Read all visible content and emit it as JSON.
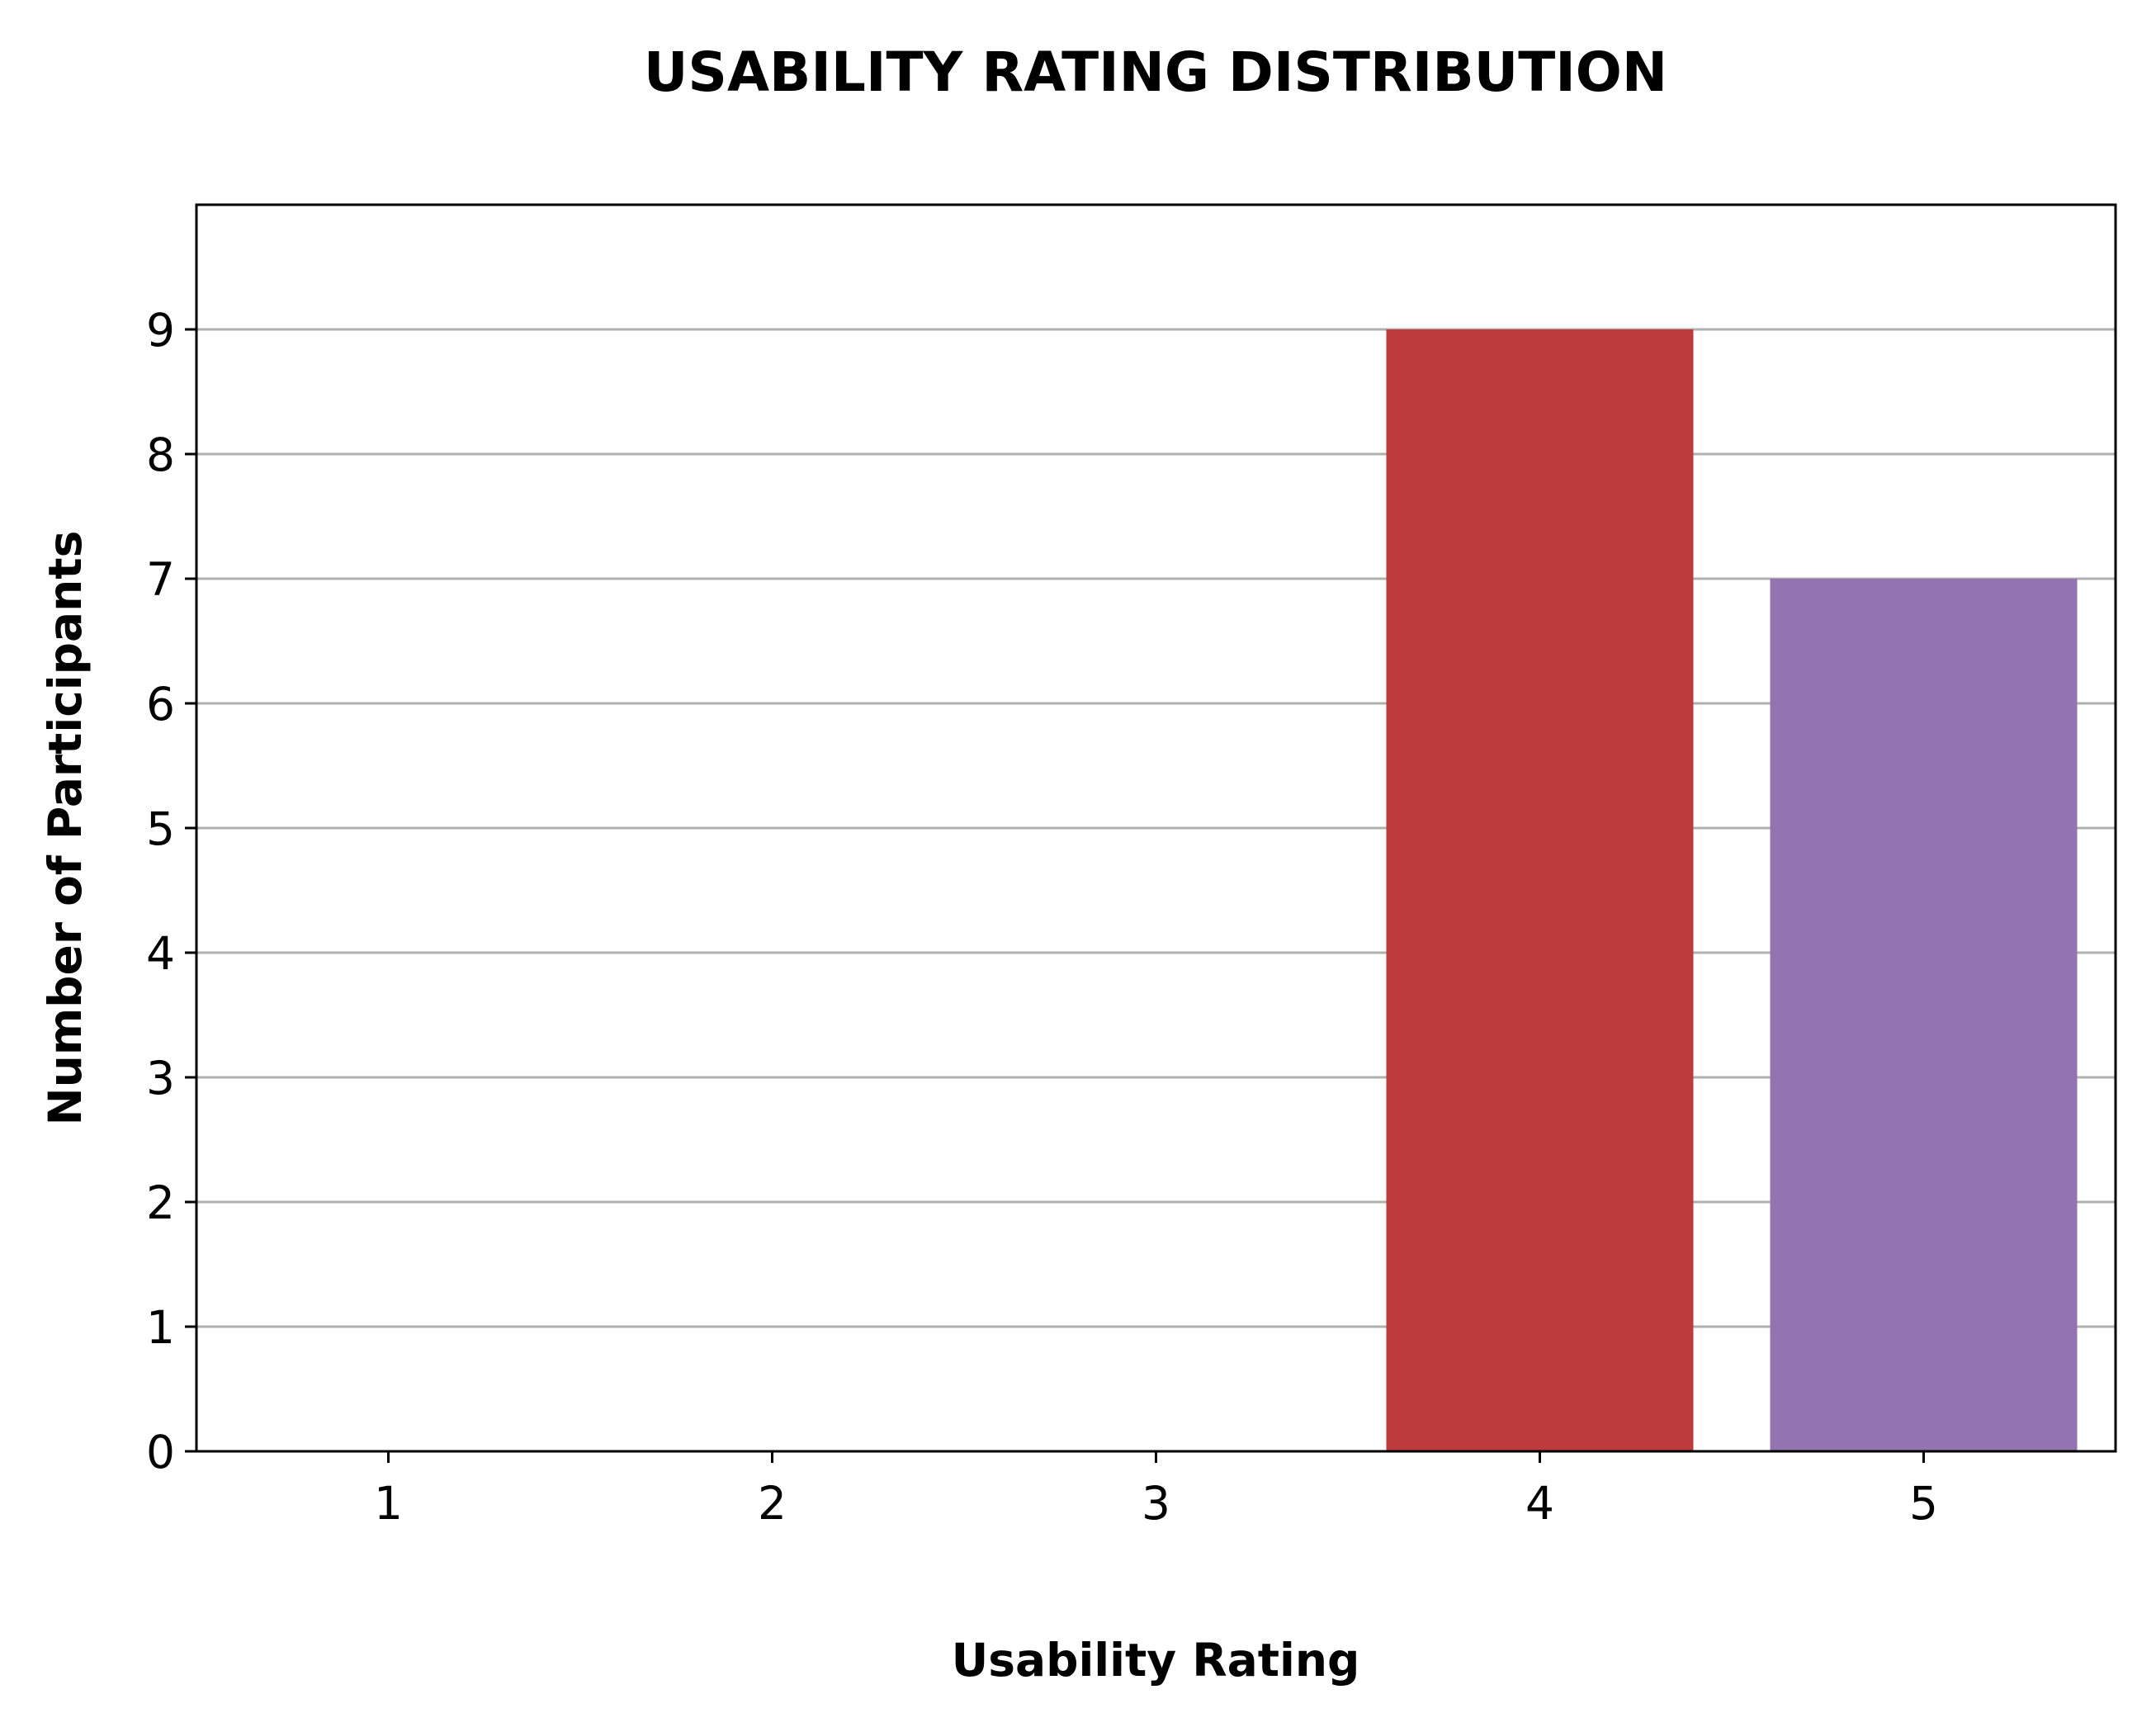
{
  "chart_data": {
    "type": "bar",
    "title": "USABILITY RATING DISTRIBUTION",
    "xlabel": "Usability Rating",
    "ylabel": "Number of Participants",
    "categories": [
      "1",
      "2",
      "3",
      "4",
      "5"
    ],
    "values": [
      0,
      0,
      0,
      9,
      7
    ],
    "colors": [
      "#1f77b4",
      "#ff7f0e",
      "#2ca02c",
      "#bd3b3d",
      "#9373b0"
    ],
    "yticks": [
      0,
      1,
      2,
      3,
      4,
      5,
      6,
      7,
      8,
      9
    ],
    "ylim": [
      0,
      10
    ],
    "grid": "y",
    "grid_color": "#b0b0b0",
    "legend": "none"
  }
}
